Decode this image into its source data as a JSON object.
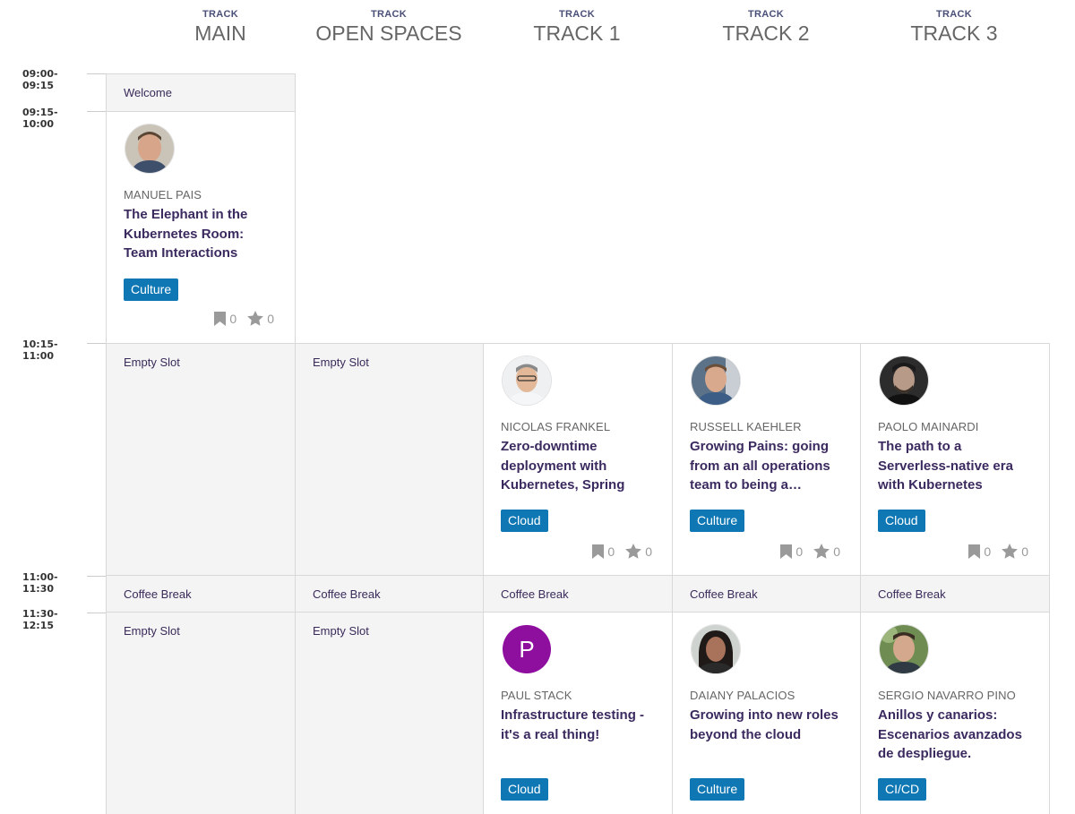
{
  "tracks": [
    {
      "kicker": "TRACK",
      "name": "MAIN"
    },
    {
      "kicker": "TRACK",
      "name": "OPEN SPACES"
    },
    {
      "kicker": "TRACK",
      "name": "TRACK 1"
    },
    {
      "kicker": "TRACK",
      "name": "TRACK 2"
    },
    {
      "kicker": "TRACK",
      "name": "TRACK 3"
    }
  ],
  "times": [
    "09:00-09:15",
    "09:15-10:00",
    "10:15-11:00",
    "11:00-11:30",
    "11:30-12:15"
  ],
  "slots": {
    "welcome": "Welcome",
    "empty": "Empty Slot",
    "coffee": "Coffee Break"
  },
  "talks": [
    {
      "speaker": "MANUEL PAIS",
      "title": "The Elephant in the Kubernetes Room: Team Interactions",
      "tag": "Culture",
      "bookmarks": "0",
      "stars": "0"
    },
    {
      "speaker": "NICOLAS FRANKEL",
      "title": "Zero-downtime deployment with Kubernetes, Spring Bo…",
      "tag": "Cloud",
      "bookmarks": "0",
      "stars": "0"
    },
    {
      "speaker": "RUSSELL KAEHLER",
      "title": "Growing Pains: going from an all operations team to being a…",
      "tag": "Culture",
      "bookmarks": "0",
      "stars": "0"
    },
    {
      "speaker": "PAOLO MAINARDI",
      "title": "The path to a Serverless-native era with Kubernetes",
      "tag": "Cloud",
      "bookmarks": "0",
      "stars": "0"
    },
    {
      "speaker": "PAUL STACK",
      "avatar_letter": "P",
      "title": "Infrastructure testing - it's a real thing!",
      "tag": "Cloud"
    },
    {
      "speaker": "DAIANY PALACIOS",
      "title": "Growing into new roles beyond the cloud",
      "tag": "Culture"
    },
    {
      "speaker": "SERGIO NAVARRO PINO",
      "title": "Anillos y canarios: Escenarios avanzados de despliegue.",
      "tag": "CI/CD"
    }
  ],
  "colors": {
    "tag": "#0e77b4",
    "grey_cell": "#f4f4f4",
    "title": "#3b2a5f",
    "avatar_letter_bg": "#8e0e9e"
  }
}
